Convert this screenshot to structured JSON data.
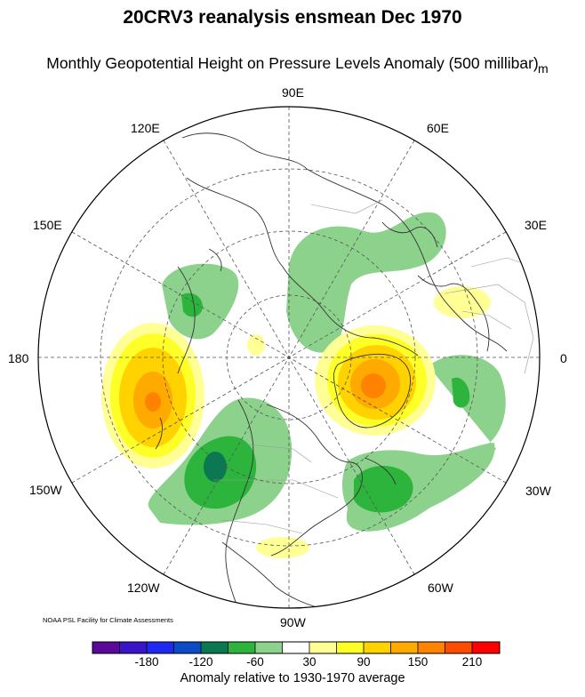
{
  "title": "20CRV3 reanalysis ensmean Dec 1970",
  "subtitle": "Monthly Geopotential Height on Pressure Levels Anomaly (500 millibar)",
  "units": "m",
  "credit": "NOAA PSL Facility for Climate Assessments",
  "longitude_labels": {
    "e90": "90E",
    "e60": "60E",
    "e30": "30E",
    "zero": "0",
    "w30": "30W",
    "w60": "60W",
    "w90": "90W",
    "w120": "120W",
    "w150": "150W",
    "dateline": "180",
    "e150": "150E",
    "e120": "120E"
  },
  "colorbar": {
    "caption": "Anomaly relative to 1930-1970 average",
    "tick_labels": [
      "-180",
      "-120",
      "-60",
      "30",
      "90",
      "150",
      "210"
    ],
    "colors": [
      "#5a0a96",
      "#3a14c8",
      "#1e28f0",
      "#0a4bc8",
      "#0a7850",
      "#2db43c",
      "#8cd28c",
      "#ffffff",
      "#ffff96",
      "#ffff28",
      "#ffd200",
      "#ffaa00",
      "#ff8200",
      "#ff4b00",
      "#ff0000"
    ]
  }
}
